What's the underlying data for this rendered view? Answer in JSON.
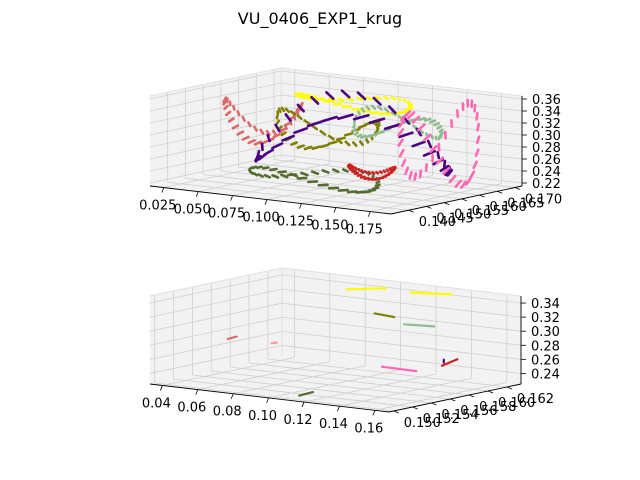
{
  "title": "VU_0406_EXP1_krug",
  "chart_data": [
    {
      "type": "scatter",
      "subtype": "3d-vector-field",
      "title": "VU_0406_EXP1_krug",
      "xlim": [
        0.015,
        0.19
      ],
      "ylim": [
        0.135,
        0.172
      ],
      "zlim": [
        0.215,
        0.365
      ],
      "x_ticks": [
        "0.025",
        "0.050",
        "0.075",
        "0.100",
        "0.125",
        "0.150",
        "0.175"
      ],
      "y_ticks": [
        "0.140",
        "0.145",
        "0.150",
        "0.155",
        "0.160",
        "0.165",
        "0.170"
      ],
      "z_ticks": [
        "0.22",
        "0.24",
        "0.26",
        "0.28",
        "0.30",
        "0.32",
        "0.34",
        "0.36"
      ],
      "grid": true,
      "series": [
        {
          "color": "#ffff00",
          "cx": 0.085,
          "cy": 0.165,
          "cz": 0.335,
          "rx": 0.04,
          "ry": 0.004,
          "dz": 0.008
        },
        {
          "color": "#dd6666",
          "cx": 0.045,
          "cy": 0.155,
          "cz": 0.305,
          "rx": 0.025,
          "ry": 0.005,
          "dz": 0.03
        },
        {
          "color": "#808000",
          "cx": 0.105,
          "cy": 0.15,
          "cz": 0.31,
          "rx": 0.035,
          "ry": 0.004,
          "dz": 0.025
        },
        {
          "color": "#8fbc8f",
          "cx": 0.125,
          "cy": 0.162,
          "cz": 0.31,
          "rx": 0.03,
          "ry": 0.004,
          "dz": 0.02
        },
        {
          "color": "#4b0082",
          "cx": 0.11,
          "cy": 0.155,
          "cz": 0.295,
          "rx": 0.065,
          "ry": 0.01,
          "dz": 0.05
        },
        {
          "color": "#ff69b4",
          "cx": 0.165,
          "cy": 0.158,
          "cz": 0.29,
          "rx": 0.02,
          "ry": 0.008,
          "dz": 0.06
        },
        {
          "color": "#556b2f",
          "cx": 0.1,
          "cy": 0.148,
          "cz": 0.235,
          "rx": 0.045,
          "ry": 0.004,
          "dz": 0.012
        },
        {
          "color": "#cc2222",
          "cx": 0.15,
          "cy": 0.145,
          "cz": 0.262,
          "rx": 0.015,
          "ry": 0.003,
          "dz": 0.008
        }
      ]
    },
    {
      "type": "scatter",
      "subtype": "3d-vector-segments",
      "xlim": [
        0.033,
        0.168
      ],
      "ylim": [
        0.1495,
        0.1635
      ],
      "zlim": [
        0.225,
        0.35
      ],
      "x_ticks": [
        "0.04",
        "0.06",
        "0.08",
        "0.10",
        "0.12",
        "0.14",
        "0.16"
      ],
      "y_ticks": [
        "0.150",
        "0.152",
        "0.154",
        "0.156",
        "0.158",
        "0.160",
        "0.162"
      ],
      "z_ticks": [
        "0.24",
        "0.26",
        "0.28",
        "0.30",
        "0.32",
        "0.34"
      ],
      "grid": true,
      "segments": [
        {
          "color": "#ffff00",
          "from": [
            0.075,
            0.1625,
            0.335
          ],
          "to": [
            0.097,
            0.1625,
            0.343
          ]
        },
        {
          "color": "#ffff00",
          "from": [
            0.111,
            0.1625,
            0.341
          ],
          "to": [
            0.134,
            0.1625,
            0.345
          ]
        },
        {
          "color": "#808000",
          "from": [
            0.112,
            0.1585,
            0.323
          ],
          "to": [
            0.123,
            0.1585,
            0.321
          ]
        },
        {
          "color": "#8fbc8f",
          "from": [
            0.128,
            0.1586,
            0.312
          ],
          "to": [
            0.145,
            0.1586,
            0.314
          ]
        },
        {
          "color": "#dd6666",
          "from": [
            0.053,
            0.154,
            0.282
          ],
          "to": [
            0.058,
            0.154,
            0.287
          ]
        },
        {
          "color": "#ff9999",
          "from": [
            0.075,
            0.1545,
            0.281
          ],
          "to": [
            0.078,
            0.1545,
            0.283
          ]
        },
        {
          "color": "#4b0082",
          "from": [
            0.167,
            0.1555,
            0.278
          ],
          "to": [
            0.167,
            0.1555,
            0.282
          ]
        },
        {
          "color": "#cc2222",
          "from": [
            0.164,
            0.1575,
            0.276
          ],
          "to": [
            0.166,
            0.1555,
            0.273
          ]
        },
        {
          "color": "#ff69b4",
          "from": [
            0.148,
            0.1525,
            0.275
          ],
          "to": [
            0.162,
            0.1535,
            0.27
          ]
        },
        {
          "color": "#556b2f",
          "from": [
            0.112,
            0.1505,
            0.229
          ],
          "to": [
            0.117,
            0.151,
            0.234
          ]
        }
      ]
    }
  ]
}
